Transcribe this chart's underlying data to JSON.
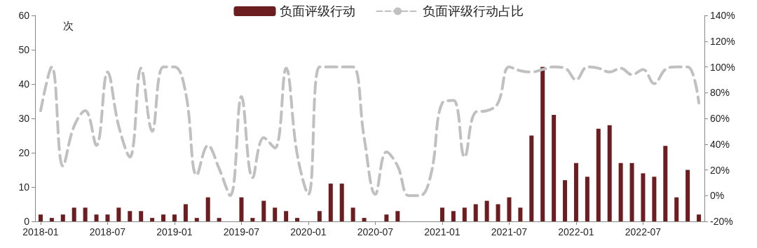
{
  "chart_data": {
    "type": "bar",
    "ylabel": "次",
    "categories": [
      "2018-01",
      null,
      null,
      null,
      null,
      null,
      "2018-07",
      null,
      null,
      null,
      null,
      null,
      "2019-01",
      null,
      null,
      null,
      null,
      null,
      "2019-07",
      null,
      null,
      null,
      null,
      null,
      "2020-01",
      null,
      null,
      null,
      null,
      null,
      "2020-07",
      null,
      null,
      null,
      null,
      null,
      "2021-01",
      null,
      null,
      null,
      null,
      null,
      "2021-07",
      null,
      null,
      null,
      null,
      null,
      "2022-01",
      null,
      null,
      null,
      null,
      null,
      "2022-07",
      null,
      null,
      null,
      null,
      null
    ],
    "series": [
      {
        "name": "负面评级行动",
        "color": "#6b1d1f",
        "values": [
          2,
          1,
          2,
          4,
          4,
          2,
          2,
          4,
          3,
          3,
          1,
          2,
          2,
          5,
          1,
          7,
          1,
          0,
          7,
          1,
          6,
          4,
          3,
          1,
          0,
          3,
          11,
          11,
          4,
          1,
          0,
          2,
          3,
          0,
          0,
          0,
          4,
          3,
          4,
          5,
          6,
          5,
          7,
          4,
          25,
          45,
          31,
          12,
          17,
          13,
          27,
          28,
          17,
          17,
          14,
          13,
          22,
          7,
          15,
          2
        ]
      },
      {
        "name": "负面评级行动占比",
        "type": "line",
        "axis": "y2",
        "color": "#c0c0c0",
        "line_style": "dashed",
        "marker": "none",
        "values": [
          66,
          100,
          23,
          54,
          66,
          39,
          96,
          54,
          30,
          99,
          50,
          100,
          100,
          80,
          16,
          39,
          21,
          0,
          77,
          14,
          45,
          37,
          99,
          32,
          1,
          100,
          100,
          100,
          100,
          45,
          1,
          34,
          23,
          0,
          0,
          17,
          72,
          74,
          30,
          65,
          66,
          72,
          100,
          97,
          96,
          98,
          100,
          99,
          90,
          100,
          99,
          96,
          99,
          94,
          98,
          87,
          98,
          100,
          100,
          72
        ]
      }
    ],
    "ylim": [
      0,
      60
    ],
    "yticks": [
      0,
      10,
      20,
      30,
      40,
      50,
      60
    ],
    "y2lim": [
      -20,
      140
    ],
    "y2ticks": [
      {
        "value": -20,
        "label": "-20%"
      },
      {
        "value": 0,
        "label": "0%"
      },
      {
        "value": 20,
        "label": "20%"
      },
      {
        "value": 40,
        "label": "40%"
      },
      {
        "value": 60,
        "label": "60%"
      },
      {
        "value": 80,
        "label": "80%"
      },
      {
        "value": 100,
        "label": "100%"
      },
      {
        "value": 120,
        "label": "120%"
      },
      {
        "value": 140,
        "label": "140%"
      }
    ],
    "legend": "top",
    "grid": false
  }
}
